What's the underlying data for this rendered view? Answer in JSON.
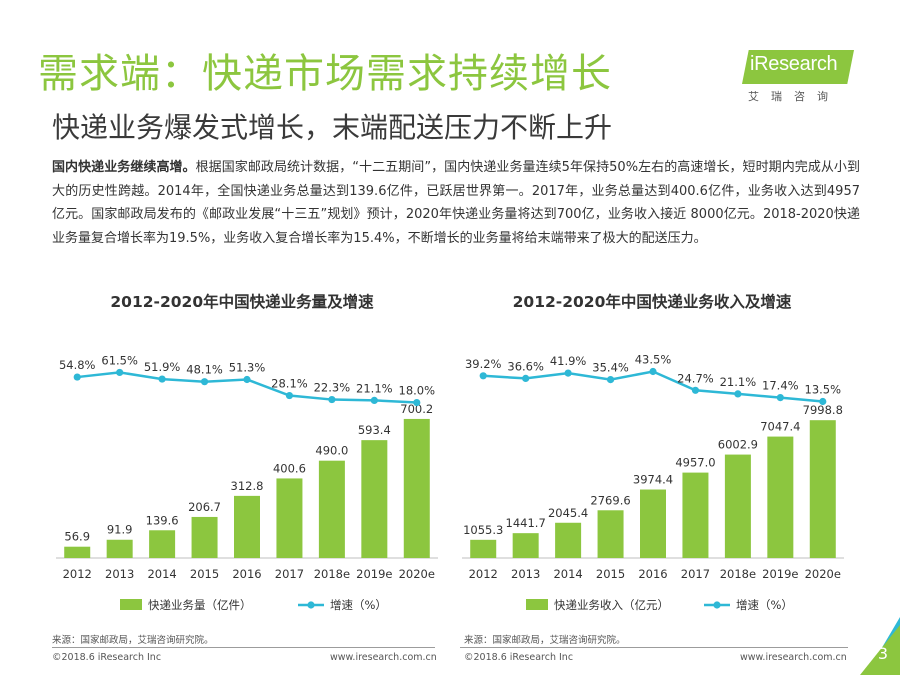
{
  "header": {
    "title": "需求端：快递市场需求持续增长",
    "subtitle": "快递业务爆发式增长，末端配送压力不断上升"
  },
  "logo": {
    "brand": "iResearch",
    "sub": "艾瑞咨询"
  },
  "intro": {
    "lead": "国内快递业务继续高增。",
    "body": "根据国家邮政局统计数据，“十二五期间”，国内快递业务量连续5年保持50%左右的高速增长，短时期内完成从小到大的历史性跨越。2014年，全国快递业务总量达到139.6亿件，已跃居世界第一。2017年，业务总量达到400.6亿件，业务收入达到4957亿元。国家邮政局发布的《邮政业发展“十三五”规划》预计，2020年快递业务量将达到700亿，业务收入接近 8000亿元。2018-2020快递业务量复合增长率为19.5%，业务收入复合增长率为15.4%，不断增长的业务量将给末端带来了极大的配送压力。"
  },
  "chart_data": [
    {
      "type": "bar",
      "title": "2012-2020年中国快递业务量及增速",
      "categories": [
        "2012",
        "2013",
        "2014",
        "2015",
        "2016",
        "2017",
        "2018e",
        "2019e",
        "2020e"
      ],
      "series": [
        {
          "name": "快递业务量（亿件）",
          "kind": "bar",
          "values": [
            56.9,
            91.9,
            139.6,
            206.7,
            312.8,
            400.6,
            490.0,
            593.4,
            700.2
          ],
          "labels": [
            "56.9",
            "91.9",
            "139.6",
            "206.7",
            "312.8",
            "400.6",
            "490.0",
            "593.4",
            "700.2"
          ]
        },
        {
          "name": "增速（%）",
          "kind": "line",
          "values": [
            54.8,
            61.5,
            51.9,
            48.1,
            51.3,
            28.1,
            22.3,
            21.1,
            18.0
          ],
          "labels": [
            "54.8%",
            "61.5%",
            "51.9%",
            "48.1%",
            "51.3%",
            "28.1%",
            "22.3%",
            "21.1%",
            "18.0%"
          ]
        }
      ],
      "bar_max": 720,
      "line_range": [
        0,
        65
      ],
      "legend_position": "bottom"
    },
    {
      "type": "bar",
      "title": "2012-2020年中国快递业务收入及增速",
      "categories": [
        "2012",
        "2013",
        "2014",
        "2015",
        "2016",
        "2017",
        "2018e",
        "2019e",
        "2020e"
      ],
      "series": [
        {
          "name": "快递业务收入（亿元）",
          "kind": "bar",
          "values": [
            1055.3,
            1441.7,
            2045.4,
            2769.6,
            3974.4,
            4957.0,
            6002.9,
            7047.4,
            7998.8
          ],
          "labels": [
            "1055.3",
            "1441.7",
            "2045.4",
            "2769.6",
            "3974.4",
            "4957.0",
            "6002.9",
            "7047.4",
            "7998.8"
          ]
        },
        {
          "name": "增速（%）",
          "kind": "line",
          "values": [
            39.2,
            36.6,
            41.9,
            35.4,
            43.5,
            24.7,
            21.1,
            17.4,
            13.5
          ],
          "labels": [
            "39.2%",
            "36.6%",
            "41.9%",
            "35.4%",
            "43.5%",
            "24.7%",
            "21.1%",
            "17.4%",
            "13.5%"
          ]
        }
      ],
      "bar_max": 8300,
      "line_range": [
        0,
        45
      ],
      "legend_position": "bottom"
    }
  ],
  "colors": {
    "bar": "#8cc63f",
    "line": "#2eb8d6",
    "title": "#8cc63f"
  },
  "sources": {
    "left": "来源：国家邮政局，艾瑞咨询研究院。",
    "right": "来源：国家邮政局，艾瑞咨询研究院。"
  },
  "footer": {
    "copyright": "©2018.6 iResearch Inc",
    "url": "www.iresearch.com.cn",
    "page": "3"
  }
}
